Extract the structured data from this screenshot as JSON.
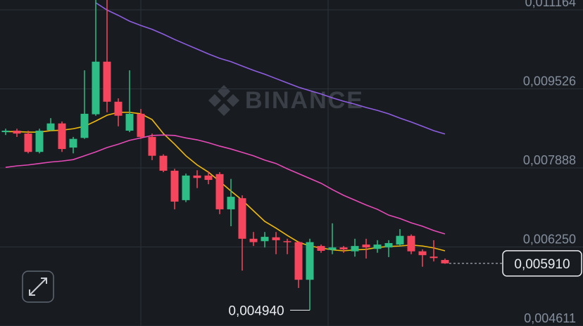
{
  "chart_data": {
    "type": "candlestick",
    "watermark": "BINANCE",
    "ylim": [
      0.004612,
      0.011368
    ],
    "yticks": [
      {
        "value": 0.004611,
        "label": "0,004611"
      },
      {
        "value": 0.00625,
        "label": "0,006250"
      },
      {
        "value": 0.007888,
        "label": "0,007888"
      },
      {
        "value": 0.009526,
        "label": "0,009526"
      },
      {
        "value": 0.011164,
        "label": "0,011164"
      }
    ],
    "grid": true,
    "up_color": "#2ebd85",
    "down_color": "#f6465d",
    "open": [
      0.00863,
      0.00866,
      0.0086,
      0.00822,
      0.00867,
      0.00881,
      0.00831,
      0.00851,
      0.009,
      0.01009,
      0.00926,
      0.00866,
      0.00901,
      0.00853,
      0.00814,
      0.00783,
      0.00722,
      0.00773,
      0.00773,
      0.00776,
      0.00703,
      0.00726,
      0.00642,
      0.00637,
      0.00645,
      0.00637,
      0.00635,
      0.00557,
      0.00627,
      0.00619,
      0.00624,
      0.00616,
      0.0063,
      0.00621,
      0.00624,
      0.0063,
      0.00648,
      0.00616,
      0.00605,
      0.00598
    ],
    "high": [
      0.0087,
      0.0087,
      0.00866,
      0.0087,
      0.00892,
      0.00885,
      0.00853,
      0.00991,
      0.01137,
      0.01137,
      0.00933,
      0.00991,
      0.00911,
      0.0086,
      0.00817,
      0.00787,
      0.00777,
      0.00784,
      0.00782,
      0.0078,
      0.00766,
      0.00732,
      0.00656,
      0.00656,
      0.00656,
      0.00642,
      0.00637,
      0.00642,
      0.0063,
      0.00674,
      0.00627,
      0.00642,
      0.00642,
      0.00639,
      0.00639,
      0.00662,
      0.00651,
      0.0062,
      0.00639,
      0.00601
    ],
    "low": [
      0.00857,
      0.00853,
      0.00819,
      0.00819,
      0.00866,
      0.00822,
      0.00819,
      0.00849,
      0.00897,
      0.00904,
      0.00875,
      0.00863,
      0.00849,
      0.00805,
      0.0078,
      0.00703,
      0.00718,
      0.00747,
      0.00755,
      0.00693,
      0.00668,
      0.00576,
      0.00627,
      0.00624,
      0.0061,
      0.0061,
      0.0054,
      0.00494,
      0.00613,
      0.0061,
      0.00613,
      0.00605,
      0.00601,
      0.00613,
      0.00604,
      0.00627,
      0.0061,
      0.00584,
      0.00595,
      0.0059
    ],
    "close": [
      0.00866,
      0.0086,
      0.00822,
      0.00866,
      0.00881,
      0.00828,
      0.00849,
      0.00901,
      0.01009,
      0.00926,
      0.00897,
      0.00901,
      0.00853,
      0.00814,
      0.00783,
      0.00719,
      0.00773,
      0.00768,
      0.00764,
      0.00703,
      0.00729,
      0.00642,
      0.00635,
      0.00646,
      0.00639,
      0.00635,
      0.00557,
      0.00635,
      0.00617,
      0.00624,
      0.0062,
      0.00627,
      0.00624,
      0.0063,
      0.00633,
      0.00648,
      0.00616,
      0.00608,
      0.00602,
      0.00591
    ],
    "series": [
      {
        "color": "#f0b90b",
        "values": [
          0.00864,
          0.00864,
          0.00863,
          0.00863,
          0.00866,
          0.00867,
          0.0087,
          0.00875,
          0.00886,
          0.00898,
          0.00904,
          0.00904,
          0.00901,
          0.00889,
          0.0086,
          0.00838,
          0.00814,
          0.00795,
          0.0078,
          0.00761,
          0.00741,
          0.00722,
          0.007,
          0.00678,
          0.00664,
          0.00649,
          0.00635,
          0.00627,
          0.00623,
          0.00619,
          0.00617,
          0.00619,
          0.0062,
          0.00624,
          0.00626,
          0.00627,
          0.00629,
          0.00627,
          0.00623,
          0.00617
        ]
      },
      {
        "color": "#e64ab7",
        "values": [
          0.0079,
          0.00793,
          0.00795,
          0.00798,
          0.00801,
          0.00803,
          0.00806,
          0.00814,
          0.00822,
          0.00831,
          0.00838,
          0.00846,
          0.00851,
          0.00856,
          0.00857,
          0.00856,
          0.00851,
          0.00847,
          0.00841,
          0.00834,
          0.00828,
          0.00821,
          0.00814,
          0.00805,
          0.00798,
          0.00787,
          0.00777,
          0.00767,
          0.00757,
          0.00744,
          0.00732,
          0.00722,
          0.00712,
          0.00703,
          0.00691,
          0.00684,
          0.00675,
          0.00668,
          0.00659,
          0.00652
        ]
      },
      {
        "color": "#8e5de0",
        "values": [
          null,
          null,
          null,
          null,
          null,
          null,
          null,
          null,
          0.01131,
          0.01116,
          0.01105,
          0.01093,
          0.01084,
          0.01076,
          0.01066,
          0.01055,
          0.01045,
          0.01035,
          0.01025,
          0.01016,
          0.01009,
          0.01,
          0.00991,
          0.00983,
          0.00974,
          0.00965,
          0.00956,
          0.00949,
          0.00942,
          0.00934,
          0.00927,
          0.00921,
          0.00914,
          0.00908,
          0.00901,
          0.00892,
          0.00884,
          0.00875,
          0.00866,
          0.00859
        ]
      }
    ],
    "last_price": {
      "value": 0.00591,
      "label": "0,005910"
    },
    "low_annotation": {
      "value": 0.00494,
      "label": "0,004940"
    }
  }
}
